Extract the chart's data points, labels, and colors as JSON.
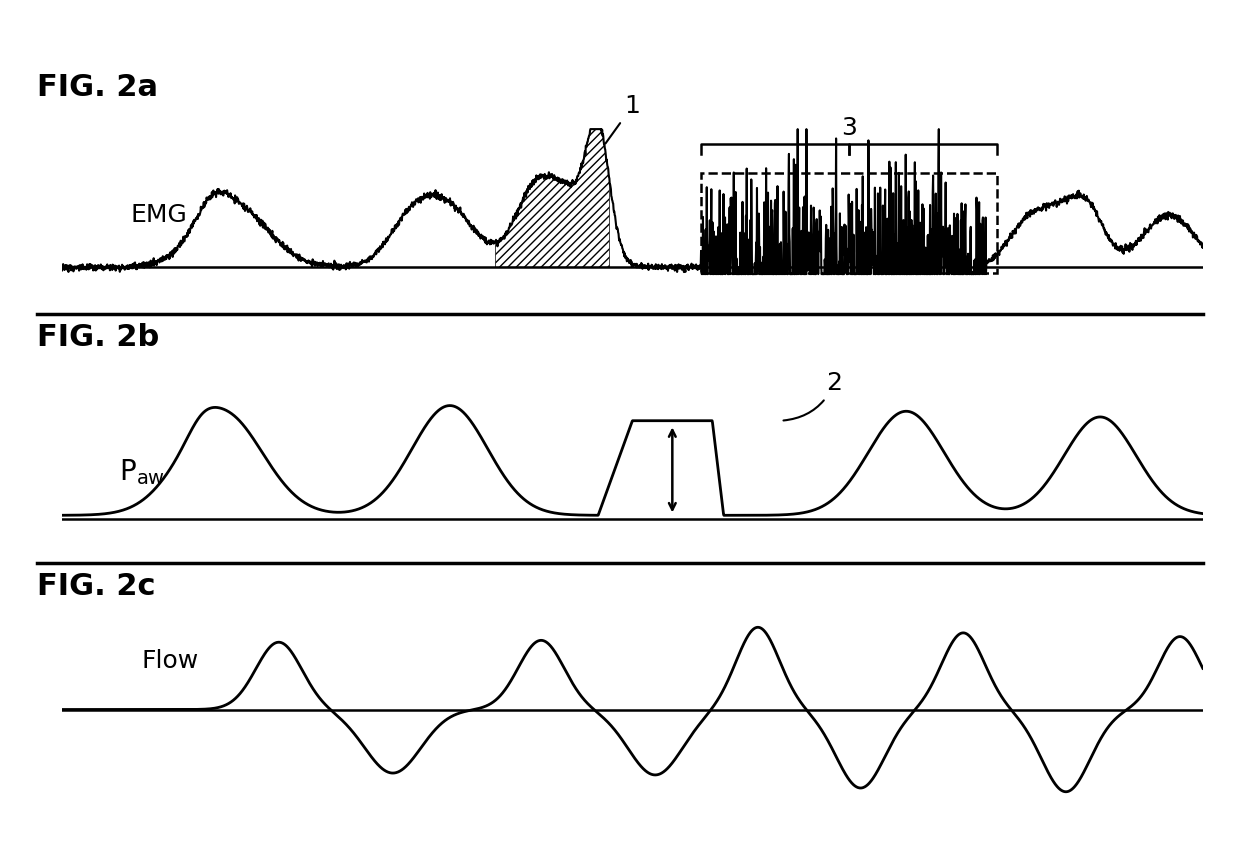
{
  "fig_title_a": "FIG. 2a",
  "fig_title_b": "FIG. 2b",
  "fig_title_c": "FIG. 2c",
  "label_emg": "EMG",
  "label_flow": "Flow",
  "bg_color": "#ffffff",
  "line_color": "#000000",
  "title_fontsize": 22,
  "label_fontsize": 18,
  "annotation_fontsize": 18
}
